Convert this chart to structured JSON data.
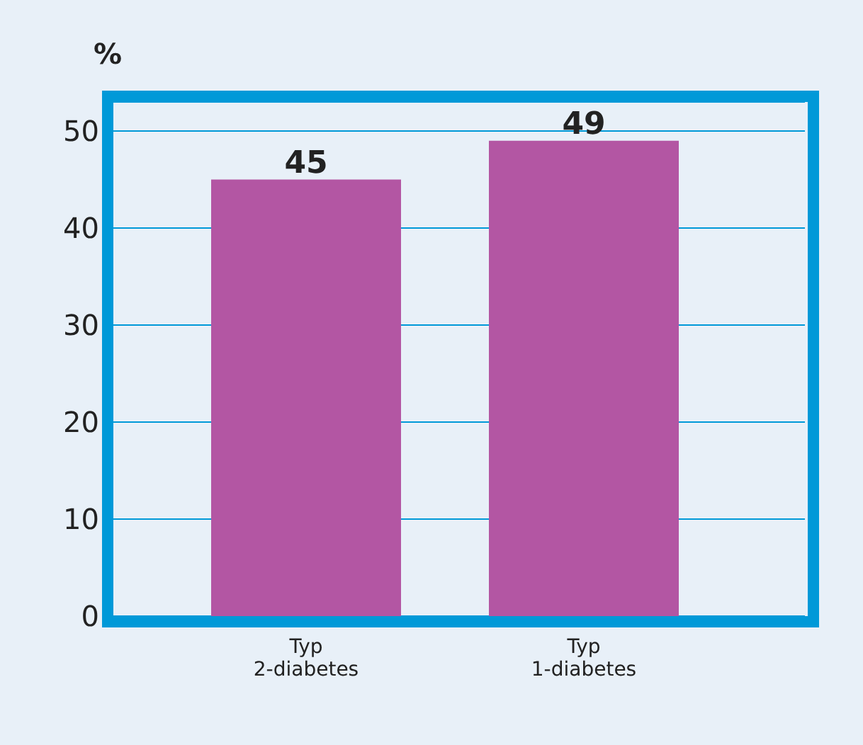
{
  "chart_data": {
    "type": "bar",
    "ylabel": "%",
    "categories": [
      "Typ 2-diabetes",
      "Typ 1-diabetes"
    ],
    "values": [
      45,
      49
    ],
    "color": "#b356a3",
    "ylim": [
      0,
      53
    ],
    "yticks": [
      0,
      10,
      20,
      30,
      40,
      50
    ],
    "grid": "y",
    "data_labels": true
  }
}
